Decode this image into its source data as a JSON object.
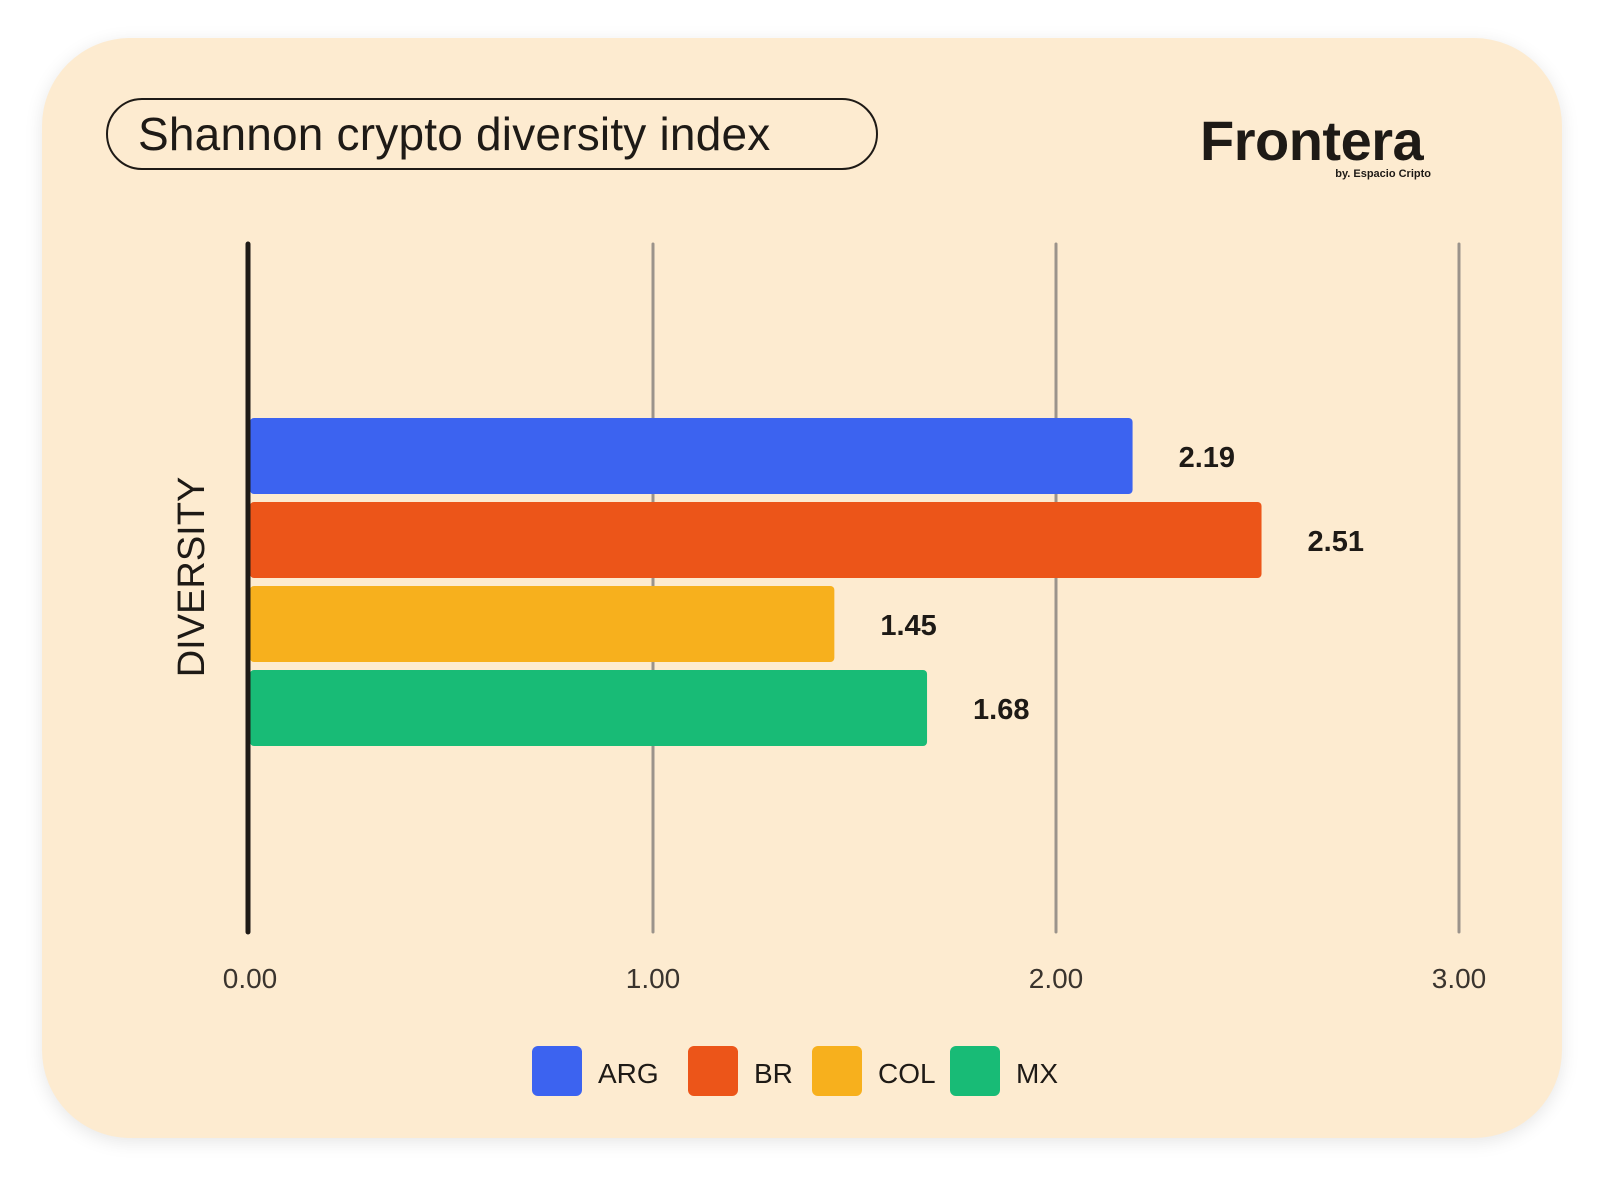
{
  "chart_data": {
    "type": "bar",
    "orientation": "horizontal",
    "title": "Shannon crypto diversity index",
    "ylabel": "DIVERSITY",
    "xlabel": "",
    "xlim": [
      0,
      3
    ],
    "xticks": [
      "0.00",
      "1.00",
      "2.00",
      "3.00"
    ],
    "grid": true,
    "legend_position": "bottom",
    "series": [
      {
        "name": "ARG",
        "value": 2.19,
        "label": "2.19",
        "color": "#3c63f0"
      },
      {
        "name": "BR",
        "value": 2.51,
        "label": "2.51",
        "color": "#ec5519"
      },
      {
        "name": "COL",
        "value": 1.45,
        "label": "1.45",
        "color": "#f7b01d"
      },
      {
        "name": "MX",
        "value": 1.68,
        "label": "1.68",
        "color": "#18bb76"
      }
    ]
  },
  "brand": {
    "name": "Frontera",
    "tagline": "by. Espacio Cripto"
  },
  "colors": {
    "background": "#fdebd0",
    "text": "#1e1a16",
    "gridline": "#9b938b"
  }
}
